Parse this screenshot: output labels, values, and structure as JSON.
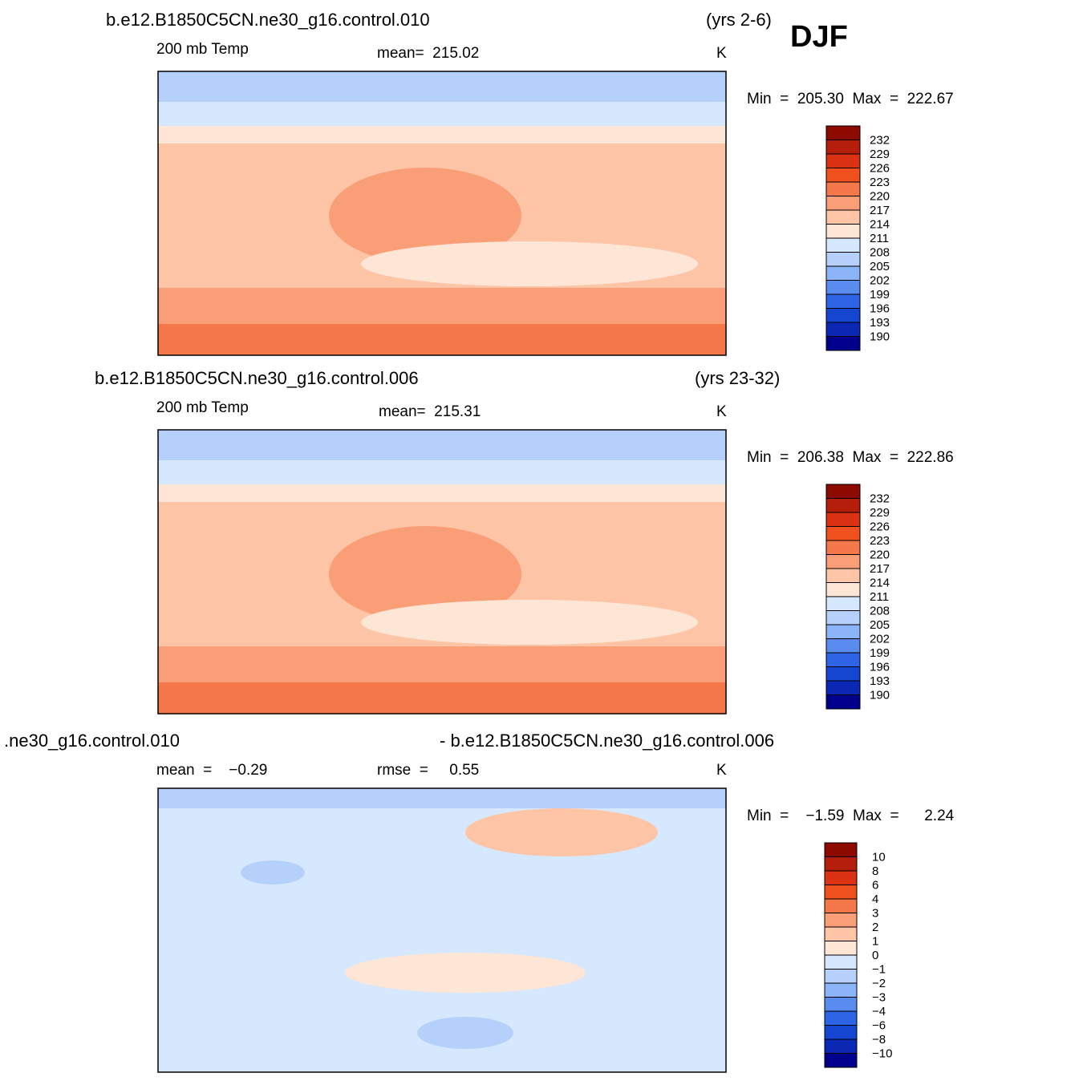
{
  "header": {
    "season": "DJF"
  },
  "panels": [
    {
      "title": "b.e12.B1850C5CN.ne30_g16.control.010",
      "period": "(yrs 2-6)",
      "field": "200 mb Temp",
      "stat": "mean=  215.02",
      "units": "K",
      "minmax": "Min  =  205.30  Max  =  222.67",
      "colorbar": [
        "232",
        "229",
        "226",
        "223",
        "220",
        "217",
        "214",
        "211",
        "208",
        "205",
        "202",
        "199",
        "196",
        "193",
        "190"
      ]
    },
    {
      "title": "b.e12.B1850C5CN.ne30_g16.control.006",
      "period": "(yrs 23-32)",
      "field": "200 mb Temp",
      "stat": "mean=  215.31",
      "units": "K",
      "minmax": "Min  =  206.38  Max  =  222.86",
      "colorbar": [
        "232",
        "229",
        "226",
        "223",
        "220",
        "217",
        "214",
        "211",
        "208",
        "205",
        "202",
        "199",
        "196",
        "193",
        "190"
      ]
    },
    {
      "title": ".ne30_g16.control.010",
      "period": "- b.e12.B1850C5CN.ne30_g16.control.006",
      "field": "mean  =    −0.29",
      "stat": "rmse  =     0.55",
      "units": "K",
      "minmax": "Min  =    −1.59  Max  =      2.24",
      "colorbar": [
        "10",
        "8",
        "6",
        "4",
        "3",
        "2",
        "1",
        "0",
        "−1",
        "−2",
        "−3",
        "−4",
        "−6",
        "−8",
        "−10"
      ]
    }
  ]
}
